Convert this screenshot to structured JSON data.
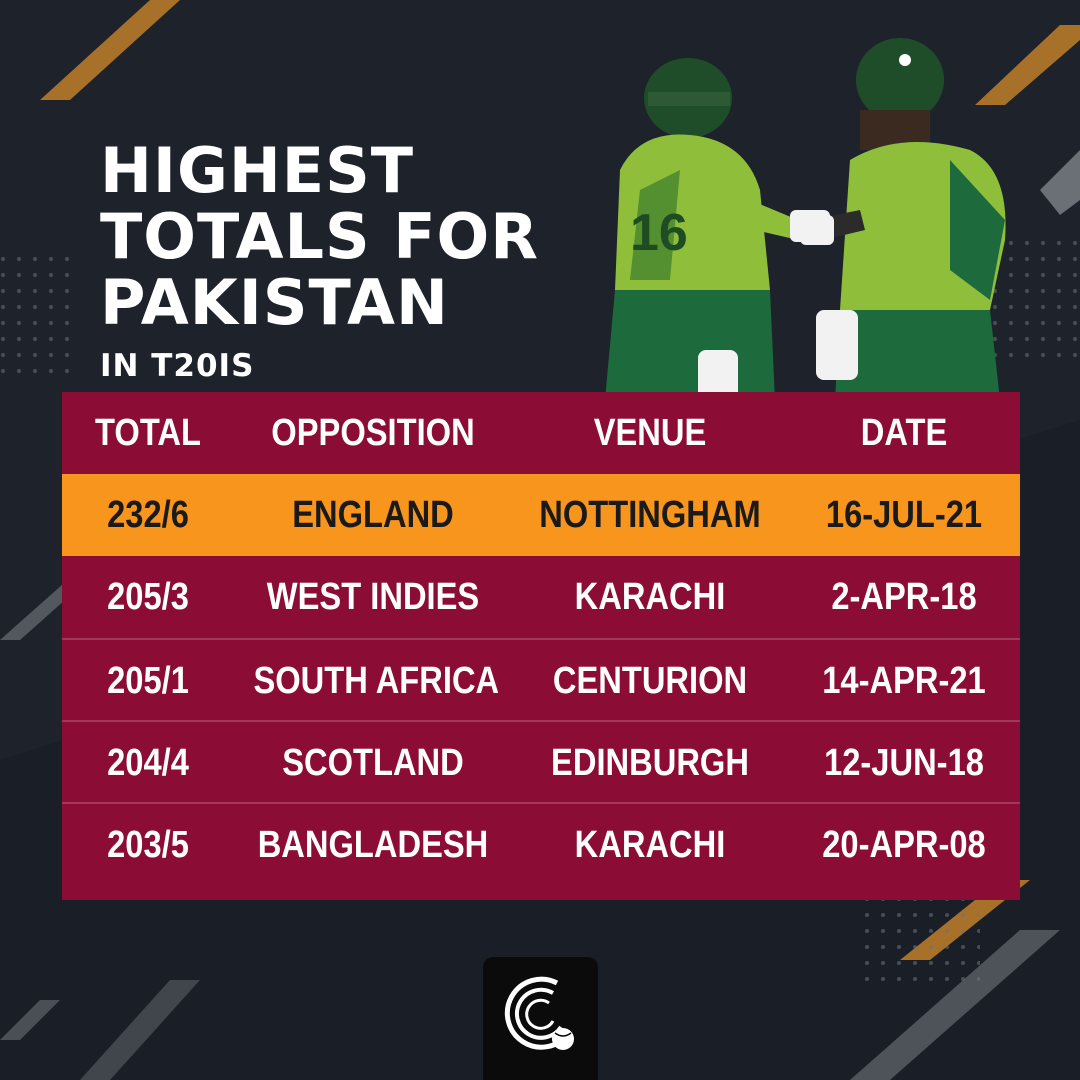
{
  "title": {
    "line1": "HIGHEST",
    "line2": "TOTALS FOR",
    "line3": "PAKISTAN",
    "subtitle": "IN T20IS"
  },
  "colors": {
    "background": "#1a1f27",
    "table": "#8b0d35",
    "highlight": "#f7951d",
    "accent_stripe": "#a8712a"
  },
  "table": {
    "headers": [
      "TOTAL",
      "OPPOSITION",
      "VENUE",
      "DATE"
    ],
    "rows": [
      {
        "total": "232/6",
        "opposition": "ENGLAND",
        "venue": "NOTTINGHAM",
        "date": "16-JUL-21"
      },
      {
        "total": "205/3",
        "opposition": "WEST INDIES",
        "venue": "KARACHI",
        "date": "2-APR-18"
      },
      {
        "total": "205/1",
        "opposition": "SOUTH AFRICA",
        "venue": "CENTURION",
        "date": "14-APR-21"
      },
      {
        "total": "204/4",
        "opposition": "SCOTLAND",
        "venue": "EDINBURGH",
        "date": "12-JUN-18"
      },
      {
        "total": "203/5",
        "opposition": "BANGLADESH",
        "venue": "KARACHI",
        "date": "20-APR-08"
      }
    ]
  },
  "images": {
    "players_photo": "two-cricketers-fist-bump-photo",
    "logo": "cricket-ball-brand-logo"
  }
}
